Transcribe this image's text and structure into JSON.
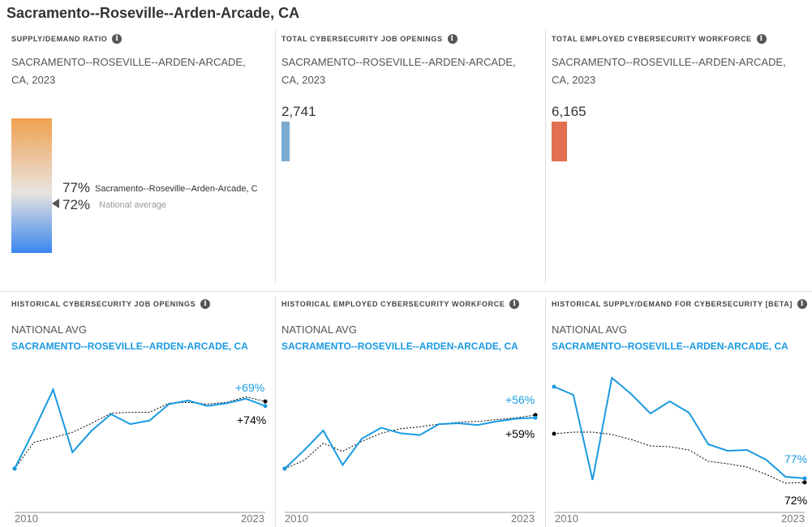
{
  "title": "Sacramento--Roseville--Arden-Arcade, CA",
  "top": {
    "ratio": {
      "header": "SUPPLY/DEMAND RATIO",
      "subtitle": "SACRAMENTO--ROSEVILLE--ARDEN-ARCADE, CA, 2023",
      "local_value": "77%",
      "local_label": "Sacramento--Roseville--Arden-Arcade, C",
      "national_value": "72%",
      "national_label": "National average",
      "gradient_colors": [
        "#f0a050",
        "#e8e4e0",
        "#3a86ef"
      ]
    },
    "openings": {
      "header": "TOTAL CYBERSECURITY JOB OPENINGS",
      "subtitle": "SACRAMENTO--ROSEVILLE--ARDEN-ARCADE, CA, 2023",
      "value": "2,741",
      "color": "#7aaad0"
    },
    "workforce": {
      "header": "TOTAL EMPLOYED CYBERSECURITY WORKFORCE",
      "subtitle": "SACRAMENTO--ROSEVILLE--ARDEN-ARCADE, CA, 2023",
      "value": "6,165",
      "color": "#e07050"
    }
  },
  "chart_data": [
    {
      "type": "line",
      "header": "HISTORICAL CYBERSECURITY JOB OPENINGS",
      "legend": [
        "NATIONAL AVG",
        "SACRAMENTO--ROSEVILLE--ARDEN-ARCADE, CA"
      ],
      "x": [
        2010,
        2011,
        2012,
        2013,
        2014,
        2015,
        2016,
        2017,
        2018,
        2019,
        2020,
        2021,
        2022,
        2023
      ],
      "x_tick_labels": [
        "2010",
        "2023"
      ],
      "series": [
        {
          "name": "SACRAMENTO--ROSEVILLE--ARDEN-ARCADE, CA",
          "color": "#1a9ae0",
          "values": [
            0,
            42,
            87,
            18,
            42,
            60,
            49,
            53,
            71,
            75,
            69,
            72,
            77,
            69
          ],
          "end_label": "+69%"
        },
        {
          "name": "NATIONAL AVG",
          "color": "#000000",
          "style": "dotted",
          "values": [
            0,
            29,
            34,
            40,
            50,
            61,
            62,
            62,
            72,
            73,
            71,
            73,
            79,
            74
          ],
          "end_label": "+74%"
        }
      ]
    },
    {
      "type": "line",
      "header": "HISTORICAL EMPLOYED CYBERSECURITY WORKFORCE",
      "legend": [
        "NATIONAL AVG",
        "SACRAMENTO--ROSEVILLE--ARDEN-ARCADE, CA"
      ],
      "x": [
        2010,
        2011,
        2012,
        2013,
        2014,
        2015,
        2016,
        2017,
        2018,
        2019,
        2020,
        2021,
        2022,
        2023
      ],
      "x_tick_labels": [
        "2010",
        "2023"
      ],
      "series": [
        {
          "name": "SACRAMENTO--ROSEVILLE--ARDEN-ARCADE, CA",
          "color": "#1a9ae0",
          "values": [
            0,
            20,
            42,
            4,
            33,
            45,
            39,
            37,
            49,
            50,
            48,
            52,
            55,
            56
          ],
          "end_label": "+56%"
        },
        {
          "name": "NATIONAL AVG",
          "color": "#000000",
          "style": "dotted",
          "values": [
            0,
            9,
            28,
            19,
            30,
            39,
            44,
            46,
            49,
            51,
            52,
            54,
            56,
            59
          ],
          "end_label": "+59%"
        }
      ]
    },
    {
      "type": "line",
      "header": "HISTORICAL SUPPLY/DEMAND FOR CYBERSECURITY [BETA]",
      "legend": [
        "NATIONAL AVG",
        "SACRAMENTO--ROSEVILLE--ARDEN-ARCADE, CA"
      ],
      "x": [
        2010,
        2011,
        2012,
        2013,
        2014,
        2015,
        2016,
        2017,
        2018,
        2019,
        2020,
        2021,
        2022,
        2023
      ],
      "x_tick_labels": [
        "2010",
        "2023"
      ],
      "series": [
        {
          "name": "SACRAMENTO--ROSEVILLE--ARDEN-ARCADE, CA",
          "color": "#1a9ae0",
          "values": [
            190,
            180,
            75,
            201,
            181,
            157,
            172,
            158,
            119,
            111,
            112,
            100,
            79,
            77
          ],
          "end_label": "77%"
        },
        {
          "name": "NATIONAL AVG",
          "color": "#000000",
          "style": "dotted",
          "values": [
            132,
            134,
            134,
            131,
            125,
            117,
            116,
            112,
            98,
            95,
            91,
            82,
            71,
            72
          ],
          "end_label": "72%"
        }
      ]
    }
  ]
}
